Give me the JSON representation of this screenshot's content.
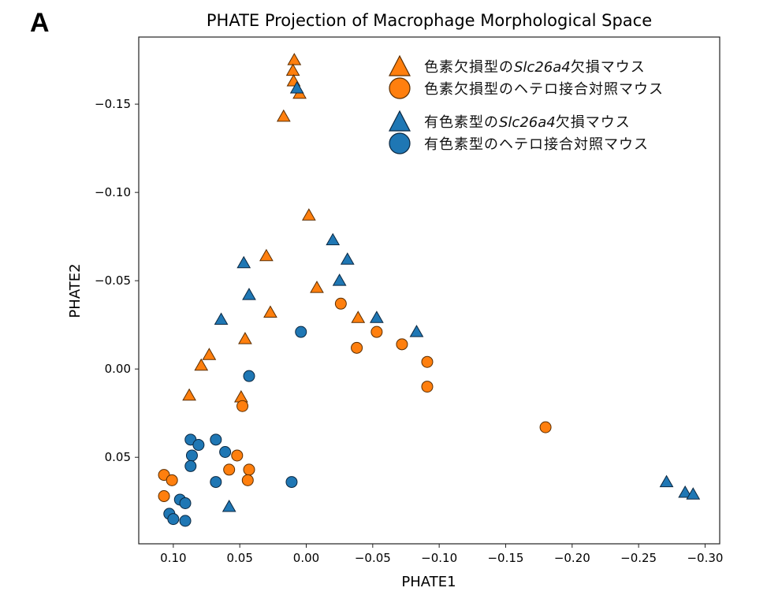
{
  "panel_label": "A",
  "chart_data": {
    "type": "scatter",
    "title": "PHATE Projection of Macrophage Morphological Space",
    "xlabel": "PHATE1",
    "ylabel": "PHATE2",
    "xlim": [
      0.126,
      -0.311
    ],
    "ylim": [
      -0.188,
      0.099
    ],
    "x_inverted": true,
    "y_inverted": true,
    "grid": false,
    "xticks": [
      0.1,
      0.05,
      0.0,
      -0.05,
      -0.1,
      -0.15,
      -0.2,
      -0.25,
      -0.3
    ],
    "xtick_labels": [
      "0.10",
      "0.05",
      "0.00",
      "−0.05",
      "−0.10",
      "−0.15",
      "−0.20",
      "−0.25",
      "−0.30"
    ],
    "yticks": [
      -0.15,
      -0.1,
      -0.05,
      0.0,
      0.05
    ],
    "ytick_labels": [
      "−0.15",
      "−0.10",
      "−0.05",
      "0.00",
      "0.05"
    ],
    "legend_position": "top-right",
    "series": [
      {
        "name": "色素欠損型のSlc26a4欠損マウス",
        "label_prefix": "色素欠損型の",
        "label_gene": "Slc26a4",
        "label_suffix": "欠損マウス",
        "marker": "triangle",
        "color": "#ff7f0e",
        "points": [
          [
            0.009,
            -0.175
          ],
          [
            0.01,
            -0.169
          ],
          [
            0.0095,
            -0.163
          ],
          [
            0.005,
            -0.156
          ],
          [
            0.017,
            -0.143
          ],
          [
            -0.002,
            -0.087
          ],
          [
            0.03,
            -0.064
          ],
          [
            -0.008,
            -0.046
          ],
          [
            0.027,
            -0.032
          ],
          [
            -0.039,
            -0.029
          ],
          [
            0.046,
            -0.017
          ],
          [
            0.073,
            -0.008
          ],
          [
            0.079,
            -0.002
          ],
          [
            0.088,
            0.015
          ],
          [
            0.049,
            0.016
          ]
        ]
      },
      {
        "name": "色素欠損型のヘテロ接合対照マウス",
        "label_prefix": "色素欠損型のヘテロ接合対照マウス",
        "label_gene": "",
        "label_suffix": "",
        "marker": "circle",
        "color": "#ff7f0e",
        "points": [
          [
            -0.026,
            -0.037
          ],
          [
            -0.053,
            -0.021
          ],
          [
            -0.038,
            -0.012
          ],
          [
            -0.072,
            -0.014
          ],
          [
            -0.091,
            -0.004
          ],
          [
            -0.091,
            0.01
          ],
          [
            0.048,
            0.021
          ],
          [
            -0.18,
            0.033
          ],
          [
            0.052,
            0.049
          ],
          [
            0.058,
            0.057
          ],
          [
            0.043,
            0.057
          ],
          [
            0.044,
            0.063
          ],
          [
            0.107,
            0.06
          ],
          [
            0.101,
            0.063
          ],
          [
            0.107,
            0.072
          ]
        ]
      },
      {
        "name": "有色素型のSlc26a4欠損マウス",
        "label_prefix": "有色素型の",
        "label_gene": "Slc26a4",
        "label_suffix": "欠損マウス",
        "marker": "triangle",
        "color": "#1f77b4",
        "points": [
          [
            0.007,
            -0.159
          ],
          [
            -0.02,
            -0.073
          ],
          [
            0.047,
            -0.06
          ],
          [
            -0.031,
            -0.062
          ],
          [
            -0.025,
            -0.05
          ],
          [
            0.043,
            -0.042
          ],
          [
            -0.053,
            -0.029
          ],
          [
            -0.083,
            -0.021
          ],
          [
            0.064,
            -0.028
          ],
          [
            0.058,
            0.078
          ],
          [
            -0.271,
            0.064
          ],
          [
            -0.285,
            0.07
          ],
          [
            -0.291,
            0.071
          ]
        ]
      },
      {
        "name": "有色素型のヘテロ接合対照マウス",
        "label_prefix": "有色素型のヘテロ接合対照マウス",
        "label_gene": "",
        "label_suffix": "",
        "marker": "circle",
        "color": "#1f77b4",
        "points": [
          [
            0.004,
            -0.021
          ],
          [
            0.043,
            0.004
          ],
          [
            0.087,
            0.04
          ],
          [
            0.081,
            0.043
          ],
          [
            0.086,
            0.049
          ],
          [
            0.087,
            0.055
          ],
          [
            0.068,
            0.04
          ],
          [
            0.061,
            0.047
          ],
          [
            0.068,
            0.064
          ],
          [
            0.011,
            0.064
          ],
          [
            0.095,
            0.074
          ],
          [
            0.091,
            0.076
          ],
          [
            0.103,
            0.082
          ],
          [
            0.1,
            0.085
          ],
          [
            0.091,
            0.086
          ]
        ]
      }
    ]
  }
}
